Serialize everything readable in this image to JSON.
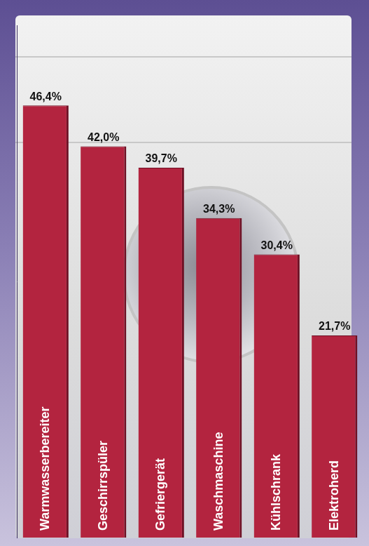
{
  "chart_data": {
    "type": "bar",
    "categories": [
      "Warmwasserbereiter",
      "Geschirrspüler",
      "Gefriergerät",
      "Waschmaschine",
      "Kühlschrank",
      "Elektroherd"
    ],
    "values": [
      46.4,
      42.0,
      39.7,
      34.3,
      30.4,
      21.7
    ],
    "value_labels": [
      "46,4%",
      "42,0%",
      "39,7%",
      "34,3%",
      "30,4%",
      "21,7%"
    ],
    "color": "#b3243f",
    "ylim": [
      0,
      55
    ],
    "grid": false,
    "data_labels": true,
    "tick_labels": false
  }
}
